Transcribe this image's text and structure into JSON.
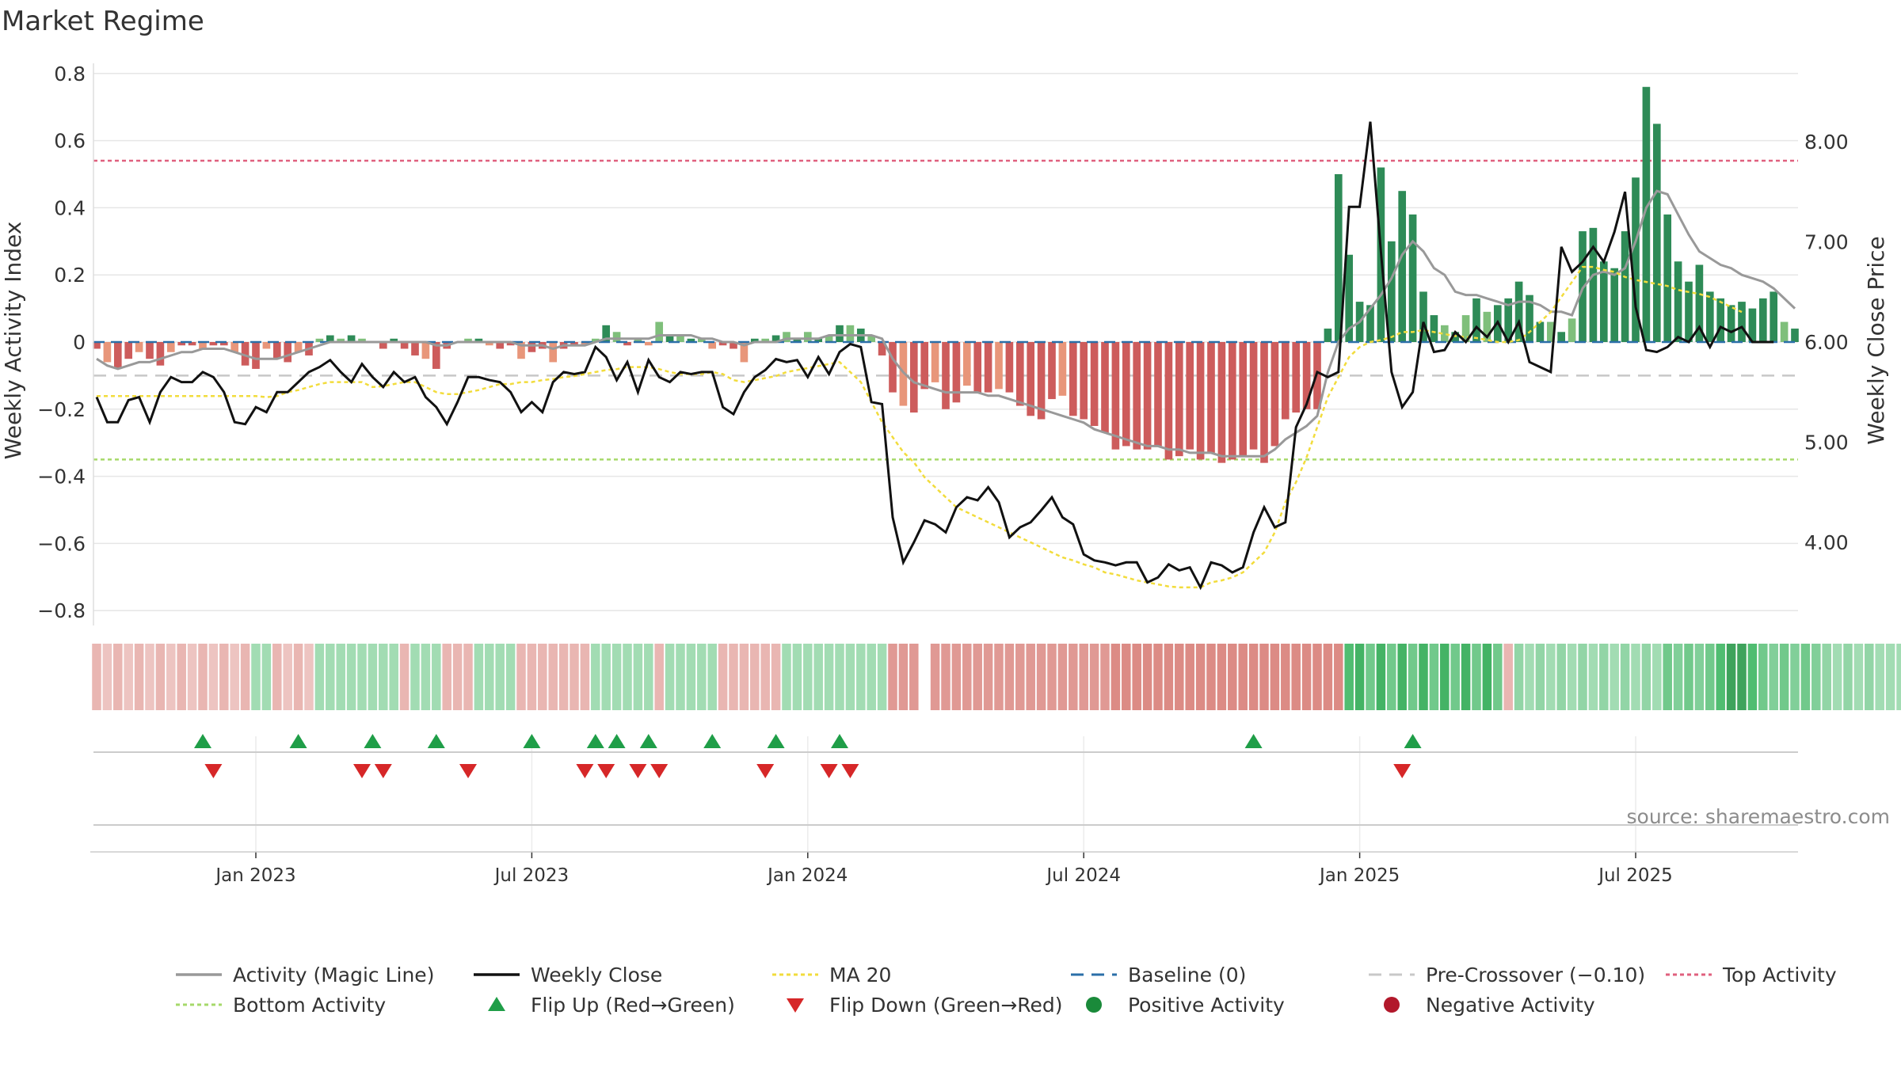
{
  "title": "Market Regime",
  "source_label": "source: sharemaestro.com",
  "colors": {
    "magic_line": "#999999",
    "weekly_close": "#111111",
    "ma20": "#f2dc3c",
    "baseline": "#2b6fa8",
    "pre_crossover": "#c8c8c8",
    "top_activity": "#e0607e",
    "bottom_activity": "#a6d96a",
    "flip_up": "#1f9e48",
    "flip_down": "#d62728",
    "positive": "#1a8a3a",
    "negative": "#b2182b",
    "bar_pos_strong": "#2e8b57",
    "bar_pos_light": "#7fbf7b",
    "bar_neg_strong": "#cd5c5c",
    "bar_neg_light": "#e8967a"
  },
  "chart_data": {
    "type": "bar",
    "ylabel_left": "Weekly Activity Index",
    "ylabel_right": "Weekly Close Price",
    "ylim_left": [
      -0.85,
      0.82
    ],
    "ylim_right": [
      3.0,
      8.4
    ],
    "yticks_left": [
      "0.8",
      "0.6",
      "0.4",
      "0.2",
      "0",
      "−0.2",
      "−0.4",
      "−0.6",
      "−0.8"
    ],
    "yticks_left_values": [
      0.8,
      0.6,
      0.4,
      0.2,
      0,
      -0.2,
      -0.4,
      -0.6,
      -0.8
    ],
    "yticks_right": [
      "8.00",
      "7.00",
      "6.00",
      "5.00",
      "4.00"
    ],
    "yticks_right_values": [
      8,
      7,
      6,
      5,
      4
    ],
    "xticks": [
      "Jan 2023",
      "Jul 2023",
      "Jan 2024",
      "Jul 2024",
      "Jan 2025",
      "Jul 2025"
    ],
    "xtick_weeks": [
      15,
      41,
      67,
      93,
      119,
      145
    ],
    "x_start": "2022-09-26",
    "reference_lines": {
      "top_activity": 0.54,
      "bottom_activity": -0.35,
      "pre_crossover": -0.1,
      "baseline": 0
    },
    "grid": true,
    "legend_position": "bottom",
    "activity": [
      -0.02,
      -0.06,
      -0.08,
      -0.05,
      -0.03,
      -0.05,
      -0.07,
      -0.03,
      -0.01,
      -0.01,
      -0.02,
      -0.01,
      -0.01,
      -0.03,
      -0.07,
      -0.08,
      -0.02,
      -0.05,
      -0.06,
      -0.03,
      -0.04,
      0.01,
      0.02,
      0.01,
      0.02,
      0.01,
      0.0,
      -0.02,
      0.01,
      -0.02,
      -0.04,
      -0.05,
      -0.08,
      -0.02,
      0.0,
      0.01,
      0.01,
      -0.01,
      -0.02,
      -0.01,
      -0.05,
      -0.03,
      -0.02,
      -0.06,
      -0.02,
      -0.01,
      -0.01,
      0.01,
      0.05,
      0.03,
      -0.01,
      0.01,
      -0.01,
      0.06,
      0.02,
      0.02,
      0.01,
      0.01,
      -0.02,
      -0.01,
      -0.02,
      -0.06,
      0.01,
      0.01,
      0.02,
      0.03,
      0.01,
      0.03,
      0.01,
      0.02,
      0.05,
      0.05,
      0.04,
      0.02,
      -0.04,
      -0.15,
      -0.19,
      -0.21,
      -0.14,
      -0.12,
      -0.2,
      -0.18,
      -0.13,
      -0.15,
      -0.15,
      -0.14,
      -0.15,
      -0.19,
      -0.22,
      -0.23,
      -0.17,
      -0.16,
      -0.22,
      -0.23,
      -0.25,
      -0.27,
      -0.32,
      -0.31,
      -0.32,
      -0.32,
      -0.31,
      -0.35,
      -0.34,
      -0.32,
      -0.35,
      -0.33,
      -0.36,
      -0.35,
      -0.34,
      -0.32,
      -0.36,
      -0.31,
      -0.23,
      -0.21,
      -0.2,
      -0.2,
      0.04,
      0.5,
      0.26,
      0.12,
      0.11,
      0.52,
      0.3,
      0.45,
      0.38,
      0.15,
      0.08,
      0.05,
      0.03,
      0.08,
      0.13,
      0.09,
      0.11,
      0.13,
      0.18,
      0.14,
      0.06,
      0.06,
      0.03,
      0.07,
      0.33,
      0.34,
      0.24,
      0.22,
      0.33,
      0.49,
      0.76,
      0.65,
      0.38,
      0.24,
      0.18,
      0.23,
      0.15,
      0.13,
      0.11,
      0.12,
      0.1,
      0.13,
      0.15,
      0.06,
      0.04
    ],
    "magic_line": [
      -0.05,
      -0.07,
      -0.08,
      -0.07,
      -0.06,
      -0.06,
      -0.05,
      -0.04,
      -0.03,
      -0.03,
      -0.02,
      -0.02,
      -0.02,
      -0.03,
      -0.04,
      -0.05,
      -0.05,
      -0.05,
      -0.04,
      -0.03,
      -0.02,
      -0.01,
      0.0,
      0.0,
      0.0,
      0.0,
      0.0,
      0.0,
      0.0,
      0.0,
      0.0,
      0.0,
      -0.01,
      -0.01,
      0.0,
      0.0,
      0.0,
      0.0,
      0.0,
      0.0,
      -0.01,
      -0.01,
      -0.01,
      -0.02,
      -0.01,
      -0.01,
      -0.01,
      0.0,
      0.01,
      0.01,
      0.01,
      0.01,
      0.01,
      0.02,
      0.02,
      0.02,
      0.02,
      0.01,
      0.01,
      0.0,
      0.0,
      -0.01,
      0.0,
      0.0,
      0.0,
      0.01,
      0.01,
      0.01,
      0.01,
      0.02,
      0.02,
      0.02,
      0.02,
      0.02,
      0.01,
      -0.05,
      -0.09,
      -0.12,
      -0.13,
      -0.14,
      -0.15,
      -0.15,
      -0.15,
      -0.15,
      -0.16,
      -0.16,
      -0.17,
      -0.18,
      -0.19,
      -0.2,
      -0.21,
      -0.22,
      -0.23,
      -0.24,
      -0.26,
      -0.27,
      -0.28,
      -0.29,
      -0.3,
      -0.31,
      -0.31,
      -0.32,
      -0.32,
      -0.33,
      -0.33,
      -0.33,
      -0.34,
      -0.34,
      -0.34,
      -0.34,
      -0.34,
      -0.32,
      -0.29,
      -0.27,
      -0.25,
      -0.22,
      -0.09,
      0.0,
      0.04,
      0.06,
      0.1,
      0.14,
      0.19,
      0.26,
      0.3,
      0.27,
      0.22,
      0.2,
      0.15,
      0.14,
      0.14,
      0.13,
      0.12,
      0.11,
      0.12,
      0.12,
      0.11,
      0.09,
      0.09,
      0.08,
      0.16,
      0.2,
      0.21,
      0.2,
      0.22,
      0.3,
      0.4,
      0.45,
      0.44,
      0.38,
      0.32,
      0.27,
      0.25,
      0.23,
      0.22,
      0.2,
      0.19,
      0.18,
      0.16,
      0.13,
      0.1
    ],
    "weekly_close": [
      5.45,
      5.2,
      5.2,
      5.42,
      5.45,
      5.2,
      5.5,
      5.65,
      5.6,
      5.6,
      5.7,
      5.65,
      5.5,
      5.2,
      5.18,
      5.35,
      5.3,
      5.5,
      5.5,
      5.6,
      5.7,
      5.75,
      5.82,
      5.7,
      5.6,
      5.78,
      5.65,
      5.55,
      5.7,
      5.6,
      5.65,
      5.45,
      5.35,
      5.18,
      5.4,
      5.65,
      5.65,
      5.62,
      5.6,
      5.5,
      5.3,
      5.4,
      5.3,
      5.6,
      5.7,
      5.68,
      5.7,
      5.95,
      5.85,
      5.62,
      5.8,
      5.5,
      5.82,
      5.65,
      5.6,
      5.7,
      5.68,
      5.7,
      5.7,
      5.35,
      5.28,
      5.5,
      5.65,
      5.72,
      5.83,
      5.8,
      5.82,
      5.65,
      5.85,
      5.68,
      5.9,
      5.98,
      5.95,
      5.4,
      5.38,
      4.25,
      3.8,
      4.0,
      4.22,
      4.18,
      4.1,
      4.35,
      4.45,
      4.42,
      4.55,
      4.4,
      4.05,
      4.15,
      4.2,
      4.32,
      4.45,
      4.25,
      4.18,
      3.88,
      3.82,
      3.8,
      3.77,
      3.8,
      3.8,
      3.6,
      3.65,
      3.78,
      3.72,
      3.75,
      3.55,
      3.8,
      3.77,
      3.7,
      3.75,
      4.1,
      4.35,
      4.15,
      4.2,
      5.15,
      5.38,
      5.7,
      5.65,
      5.7,
      7.35,
      7.35,
      8.2,
      6.9,
      5.7,
      5.35,
      5.5,
      6.2,
      5.9,
      5.92,
      6.1,
      6.0,
      6.15,
      6.05,
      6.2,
      6.0,
      6.2,
      5.8,
      5.75,
      5.7,
      6.95,
      6.7,
      6.8,
      6.95,
      6.8,
      7.1,
      7.5,
      6.35,
      5.92,
      5.9,
      5.95,
      6.05,
      6.0,
      6.15,
      5.95,
      6.15,
      6.1,
      6.15,
      6.0,
      6.0,
      6.0
    ],
    "ma20": [
      5.46,
      5.46,
      5.46,
      5.46,
      5.46,
      5.46,
      5.46,
      5.46,
      5.46,
      5.46,
      5.46,
      5.46,
      5.46,
      5.46,
      5.46,
      5.46,
      5.45,
      5.46,
      5.5,
      5.52,
      5.55,
      5.58,
      5.6,
      5.6,
      5.6,
      5.6,
      5.55,
      5.56,
      5.58,
      5.6,
      5.6,
      5.55,
      5.5,
      5.48,
      5.48,
      5.5,
      5.52,
      5.55,
      5.58,
      5.58,
      5.6,
      5.6,
      5.62,
      5.63,
      5.65,
      5.66,
      5.68,
      5.7,
      5.72,
      5.73,
      5.75,
      5.75,
      5.75,
      5.73,
      5.7,
      5.68,
      5.68,
      5.68,
      5.7,
      5.68,
      5.62,
      5.6,
      5.62,
      5.64,
      5.66,
      5.7,
      5.72,
      5.74,
      5.76,
      5.78,
      5.8,
      5.7,
      5.6,
      5.4,
      5.2,
      5.05,
      4.9,
      4.8,
      4.65,
      4.55,
      4.45,
      4.35,
      4.3,
      4.25,
      4.2,
      4.15,
      4.1,
      4.05,
      4.0,
      3.95,
      3.9,
      3.85,
      3.82,
      3.78,
      3.75,
      3.7,
      3.68,
      3.65,
      3.62,
      3.6,
      3.58,
      3.56,
      3.55,
      3.55,
      3.55,
      3.6,
      3.62,
      3.65,
      3.7,
      3.8,
      3.9,
      4.1,
      4.4,
      4.6,
      4.85,
      5.15,
      5.45,
      5.65,
      5.85,
      5.95,
      6.0,
      6.02,
      6.05,
      6.1,
      6.1,
      6.12,
      6.1,
      6.08,
      6.06,
      6.05,
      6.04,
      6.02,
      6.0,
      6.0,
      6.02,
      6.1,
      6.2,
      6.3,
      6.45,
      6.6,
      6.75,
      6.75,
      6.72,
      6.7,
      6.65,
      6.62,
      6.6,
      6.58,
      6.56,
      6.52,
      6.5,
      6.48,
      6.45,
      6.4,
      6.35,
      6.3
    ],
    "regime_strip": [
      -0.3,
      -0.2,
      -0.3,
      -0.2,
      -0.3,
      -0.2,
      -0.3,
      -0.2,
      -0.3,
      -0.2,
      -0.3,
      -0.2,
      -0.3,
      -0.2,
      -0.3,
      0.3,
      0.3,
      -0.3,
      -0.2,
      -0.3,
      -0.2,
      0.3,
      0.3,
      0.3,
      0.3,
      0.3,
      0.3,
      0.3,
      0.3,
      -0.3,
      0.3,
      0.3,
      0.3,
      -0.3,
      -0.3,
      -0.3,
      0.3,
      0.3,
      0.3,
      0.3,
      -0.3,
      -0.3,
      -0.3,
      -0.3,
      -0.3,
      -0.3,
      -0.3,
      0.3,
      0.3,
      0.3,
      0.3,
      0.3,
      0.3,
      -0.3,
      0.3,
      0.3,
      0.3,
      0.3,
      0.3,
      -0.3,
      -0.3,
      -0.3,
      -0.3,
      -0.3,
      -0.3,
      0.3,
      0.3,
      0.3,
      0.3,
      0.3,
      0.3,
      0.3,
      0.3,
      0.3,
      0.3,
      -0.5,
      -0.5,
      -0.5,
      null,
      -0.5,
      -0.5,
      -0.5,
      -0.5,
      -0.5,
      -0.5,
      -0.5,
      -0.5,
      -0.5,
      -0.5,
      -0.5,
      -0.5,
      -0.5,
      -0.5,
      -0.5,
      -0.5,
      -0.5,
      -0.6,
      -0.6,
      -0.6,
      -0.6,
      -0.6,
      -0.6,
      -0.6,
      -0.6,
      -0.6,
      -0.6,
      -0.6,
      -0.6,
      -0.6,
      -0.6,
      -0.6,
      -0.6,
      -0.6,
      -0.6,
      -0.6,
      -0.6,
      -0.6,
      -0.6,
      0.8,
      0.9,
      0.6,
      0.9,
      0.6,
      0.9,
      0.6,
      0.9,
      0.6,
      0.9,
      0.6,
      0.9,
      0.6,
      0.9,
      0.6,
      -0.3,
      0.4,
      0.3,
      0.4,
      0.3,
      0.4,
      0.3,
      0.4,
      0.3,
      0.4,
      0.3,
      0.4,
      0.3,
      0.4,
      0.3,
      0.6,
      0.5,
      0.6,
      0.5,
      0.6,
      0.8,
      1.0,
      1.0,
      0.8,
      0.6,
      0.5,
      0.6,
      0.5,
      0.6,
      0.5,
      0.4,
      0.3,
      0.4,
      0.3,
      0.4,
      0.3,
      0.3,
      0.3
    ],
    "flip_up_weeks": [
      10,
      19,
      26,
      32,
      41,
      47,
      49,
      52,
      58,
      64,
      70,
      109,
      124
    ],
    "flip_down_weeks": [
      11,
      25,
      27,
      35,
      46,
      48,
      51,
      53,
      63,
      69,
      71,
      123
    ],
    "legend": [
      {
        "label": "Activity (Magic Line)",
        "marker": "line-gray"
      },
      {
        "label": "Weekly Close",
        "marker": "line-black"
      },
      {
        "label": "MA 20",
        "marker": "line-yellow-dotted"
      },
      {
        "label": "Baseline (0)",
        "marker": "line-blue-dashed"
      },
      {
        "label": "Pre-Crossover (−0.10)",
        "marker": "line-gray-dashed"
      },
      {
        "label": "Top Activity",
        "marker": "line-pink-dotted"
      },
      {
        "label": "Bottom Activity",
        "marker": "line-green-dotted"
      },
      {
        "label": "Flip Up (Red→Green)",
        "marker": "triangle-up-icon"
      },
      {
        "label": "Flip Down (Green→Red)",
        "marker": "triangle-down-icon"
      },
      {
        "label": "Positive Activity",
        "marker": "circle-green-icon"
      },
      {
        "label": "Negative Activity",
        "marker": "circle-red-icon"
      }
    ]
  }
}
